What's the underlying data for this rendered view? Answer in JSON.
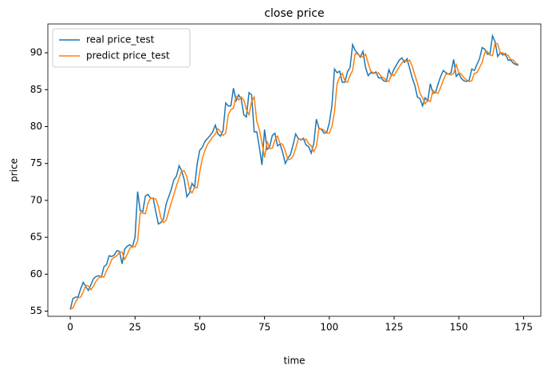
{
  "chart_data": {
    "type": "line",
    "title": "close price",
    "xlabel": "time",
    "ylabel": "price",
    "legend": "upper left",
    "xlim": [
      -8.65,
      181.65
    ],
    "ylim": [
      54.3,
      93.9
    ],
    "xticks": [
      0,
      25,
      50,
      75,
      100,
      125,
      150,
      175
    ],
    "yticks": [
      55,
      60,
      65,
      70,
      75,
      80,
      85,
      90
    ],
    "x": [
      0,
      1,
      2,
      3,
      4,
      5,
      6,
      7,
      8,
      9,
      10,
      11,
      12,
      13,
      14,
      15,
      16,
      17,
      18,
      19,
      20,
      21,
      22,
      23,
      24,
      25,
      26,
      27,
      28,
      29,
      30,
      31,
      32,
      33,
      34,
      35,
      36,
      37,
      38,
      39,
      40,
      41,
      42,
      43,
      44,
      45,
      46,
      47,
      48,
      49,
      50,
      51,
      52,
      53,
      54,
      55,
      56,
      57,
      58,
      59,
      60,
      61,
      62,
      63,
      64,
      65,
      66,
      67,
      68,
      69,
      70,
      71,
      72,
      73,
      74,
      75,
      76,
      77,
      78,
      79,
      80,
      81,
      82,
      83,
      84,
      85,
      86,
      87,
      88,
      89,
      90,
      91,
      92,
      93,
      94,
      95,
      96,
      97,
      98,
      99,
      100,
      101,
      102,
      103,
      104,
      105,
      106,
      107,
      108,
      109,
      110,
      111,
      112,
      113,
      114,
      115,
      116,
      117,
      118,
      119,
      120,
      121,
      122,
      123,
      124,
      125,
      126,
      127,
      128,
      129,
      130,
      131,
      132,
      133,
      134,
      135,
      136,
      137,
      138,
      139,
      140,
      141,
      142,
      143,
      144,
      145,
      146,
      147,
      148,
      149,
      150,
      151,
      152,
      153,
      154,
      155,
      156,
      157,
      158,
      159,
      160,
      161,
      162,
      163,
      164,
      165,
      166,
      167,
      168,
      169,
      170,
      171,
      172,
      173
    ],
    "series": [
      {
        "name": "real price_test",
        "color": "#1f77b4",
        "values": [
          55.2,
          56.7,
          56.9,
          56.9,
          58.0,
          58.9,
          58.3,
          57.8,
          58.6,
          59.4,
          59.7,
          59.8,
          59.6,
          61.0,
          61.3,
          62.5,
          62.4,
          62.6,
          63.2,
          63.1,
          61.4,
          63.4,
          63.8,
          64.0,
          63.7,
          65.0,
          71.2,
          68.6,
          68.5,
          70.6,
          70.8,
          70.3,
          70.3,
          68.5,
          66.8,
          67.0,
          67.5,
          69.5,
          70.5,
          71.5,
          72.8,
          73.3,
          74.7,
          74.0,
          72.8,
          70.5,
          71.0,
          72.3,
          71.8,
          75.0,
          76.8,
          77.2,
          78.0,
          78.4,
          78.8,
          79.3,
          80.2,
          79.0,
          78.7,
          79.5,
          83.2,
          82.8,
          82.8,
          85.2,
          83.5,
          84.3,
          83.7,
          81.6,
          81.3,
          84.6,
          84.3,
          79.3,
          79.3,
          77.2,
          74.8,
          79.6,
          76.9,
          77.3,
          78.8,
          79.1,
          77.4,
          77.6,
          76.5,
          75.0,
          75.7,
          76.2,
          77.5,
          79.0,
          78.4,
          78.2,
          78.4,
          77.5,
          77.3,
          76.4,
          77.7,
          81.0,
          79.8,
          79.6,
          79.1,
          79.2,
          80.5,
          82.8,
          87.8,
          87.3,
          87.5,
          86.0,
          86.0,
          87.4,
          88.0,
          91.1,
          90.3,
          89.9,
          89.4,
          90.2,
          88.0,
          86.9,
          87.3,
          87.2,
          87.4,
          86.6,
          86.6,
          86.2,
          86.1,
          87.7,
          86.9,
          87.8,
          88.4,
          89.0,
          89.3,
          88.7,
          89.2,
          87.9,
          86.6,
          85.6,
          84.0,
          83.8,
          82.8,
          83.9,
          83.5,
          85.8,
          84.5,
          84.6,
          85.8,
          86.8,
          87.6,
          87.3,
          87.1,
          87.3,
          89.1,
          86.8,
          87.2,
          86.5,
          86.2,
          86.1,
          86.3,
          87.8,
          87.6,
          88.4,
          89.2,
          90.7,
          90.5,
          89.8,
          89.8,
          92.3,
          91.5,
          89.5,
          90.0,
          89.7,
          89.9,
          89.0,
          89.0,
          88.6,
          88.4,
          88.3
        ]
      },
      {
        "name": "predict price_test",
        "color": "#ff7f0e",
        "values": [
          55.3,
          55.4,
          56.2,
          56.8,
          56.9,
          57.6,
          58.5,
          58.4,
          57.9,
          58.4,
          59.1,
          59.5,
          59.7,
          59.6,
          60.5,
          61.1,
          62.0,
          62.3,
          62.5,
          63.0,
          63.0,
          62.0,
          62.7,
          63.5,
          63.8,
          63.7,
          64.5,
          68.3,
          68.3,
          68.2,
          69.6,
          70.3,
          70.3,
          70.2,
          69.2,
          67.6,
          67.0,
          67.3,
          68.5,
          69.7,
          70.8,
          72.0,
          73.0,
          74.0,
          74.0,
          73.2,
          71.5,
          71.0,
          71.8,
          71.7,
          73.9,
          75.7,
          76.8,
          77.6,
          78.1,
          78.6,
          79.0,
          79.7,
          79.3,
          78.8,
          79.1,
          81.6,
          82.3,
          82.5,
          84.1,
          83.6,
          84.0,
          83.6,
          82.3,
          81.6,
          83.4,
          84.0,
          80.7,
          79.6,
          77.8,
          75.8,
          78.0,
          77.0,
          77.1,
          78.2,
          78.7,
          77.7,
          77.6,
          76.7,
          75.5,
          75.6,
          76.0,
          77.0,
          78.3,
          78.3,
          78.2,
          78.3,
          77.7,
          77.4,
          76.6,
          77.3,
          79.7,
          79.7,
          79.5,
          79.1,
          79.1,
          80.0,
          82.0,
          85.8,
          86.7,
          87.2,
          86.2,
          86.0,
          86.9,
          87.6,
          89.9,
          89.8,
          89.6,
          89.4,
          89.8,
          88.6,
          87.5,
          87.3,
          87.2,
          87.3,
          86.8,
          86.6,
          86.3,
          86.1,
          87.1,
          86.9,
          87.5,
          88.1,
          88.6,
          89.0,
          88.8,
          89.0,
          88.2,
          87.0,
          85.9,
          84.5,
          83.9,
          83.1,
          83.6,
          83.4,
          84.9,
          84.6,
          84.5,
          85.3,
          86.3,
          87.1,
          87.1,
          87.0,
          87.2,
          88.4,
          87.3,
          87.1,
          86.6,
          86.3,
          86.1,
          86.2,
          87.2,
          87.3,
          88.0,
          88.7,
          90.0,
          90.2,
          89.7,
          89.6,
          91.3,
          91.2,
          90.0,
          90.0,
          89.6,
          89.7,
          89.1,
          89.0,
          88.6,
          88.4
        ]
      }
    ]
  }
}
